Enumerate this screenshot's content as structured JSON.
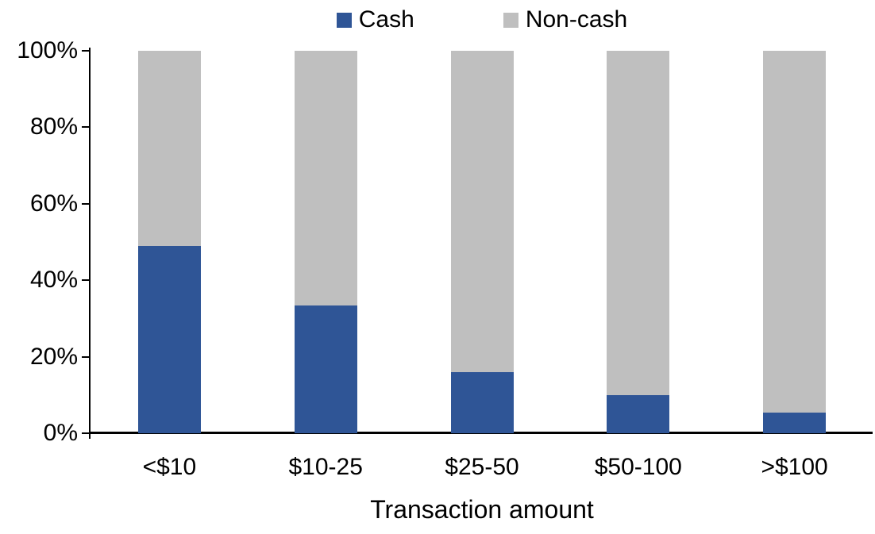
{
  "chart_data": {
    "type": "bar",
    "subtype": "stacked-100-percent-column",
    "title": "",
    "xlabel": "Transaction amount",
    "ylabel": "",
    "categories": [
      "<$10",
      "$10-25",
      "$25-50",
      "$50-100",
      ">$100"
    ],
    "series": [
      {
        "name": "Cash",
        "color": "#2F5596",
        "values": [
          49,
          33.5,
          16,
          10,
          5.5
        ]
      },
      {
        "name": "Non-cash",
        "color": "#BFBFBF",
        "values": [
          51,
          66.5,
          84,
          90,
          94.5
        ]
      }
    ],
    "ylim": [
      0,
      100
    ],
    "y_tick_values": [
      0,
      20,
      40,
      60,
      80,
      100
    ],
    "y_tick_labels": [
      "0%",
      "20%",
      "40%",
      "60%",
      "80%",
      "100%"
    ],
    "grid": false,
    "legend_position": "top-center",
    "axis_color": "#000000",
    "background_color": "#FFFFFF"
  }
}
